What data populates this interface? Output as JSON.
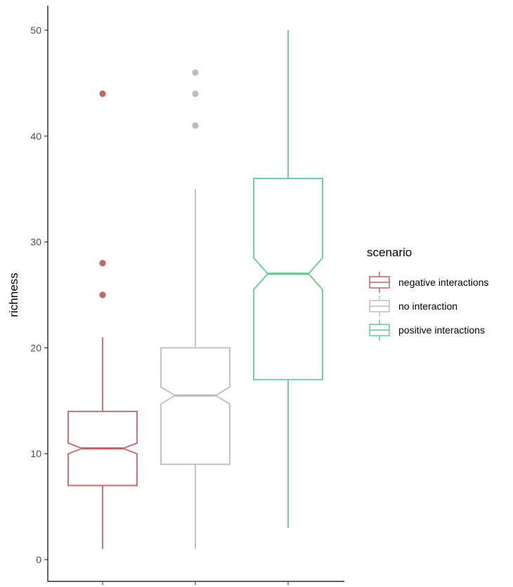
{
  "chart_data": {
    "type": "boxplot",
    "ylabel": "richness",
    "xlabel": "",
    "ylim": [
      -2,
      52
    ],
    "yticks": [
      0,
      10,
      20,
      30,
      40,
      50
    ],
    "notched": true,
    "grid": false,
    "legend": {
      "title": "scenario",
      "position": "right"
    },
    "series": [
      {
        "name": "negative interactions",
        "color": "#c86464",
        "min": 1,
        "q1": 7,
        "median": 10.5,
        "q3": 14,
        "max": 21,
        "notch_low": 10,
        "notch_high": 11,
        "outliers": [
          25,
          28,
          44
        ]
      },
      {
        "name": "no interaction",
        "color": "#bdbdbd",
        "min": 1,
        "q1": 9,
        "median": 15.5,
        "q3": 20,
        "max": 35,
        "notch_low": 14.7,
        "notch_high": 16.3,
        "outliers": [
          41,
          44,
          46
        ]
      },
      {
        "name": "positive interactions",
        "color": "#5fcc93",
        "min": 3,
        "q1": 17,
        "median": 27,
        "q3": 36,
        "max": 50,
        "notch_low": 25.5,
        "notch_high": 28.5,
        "outliers": []
      }
    ]
  }
}
